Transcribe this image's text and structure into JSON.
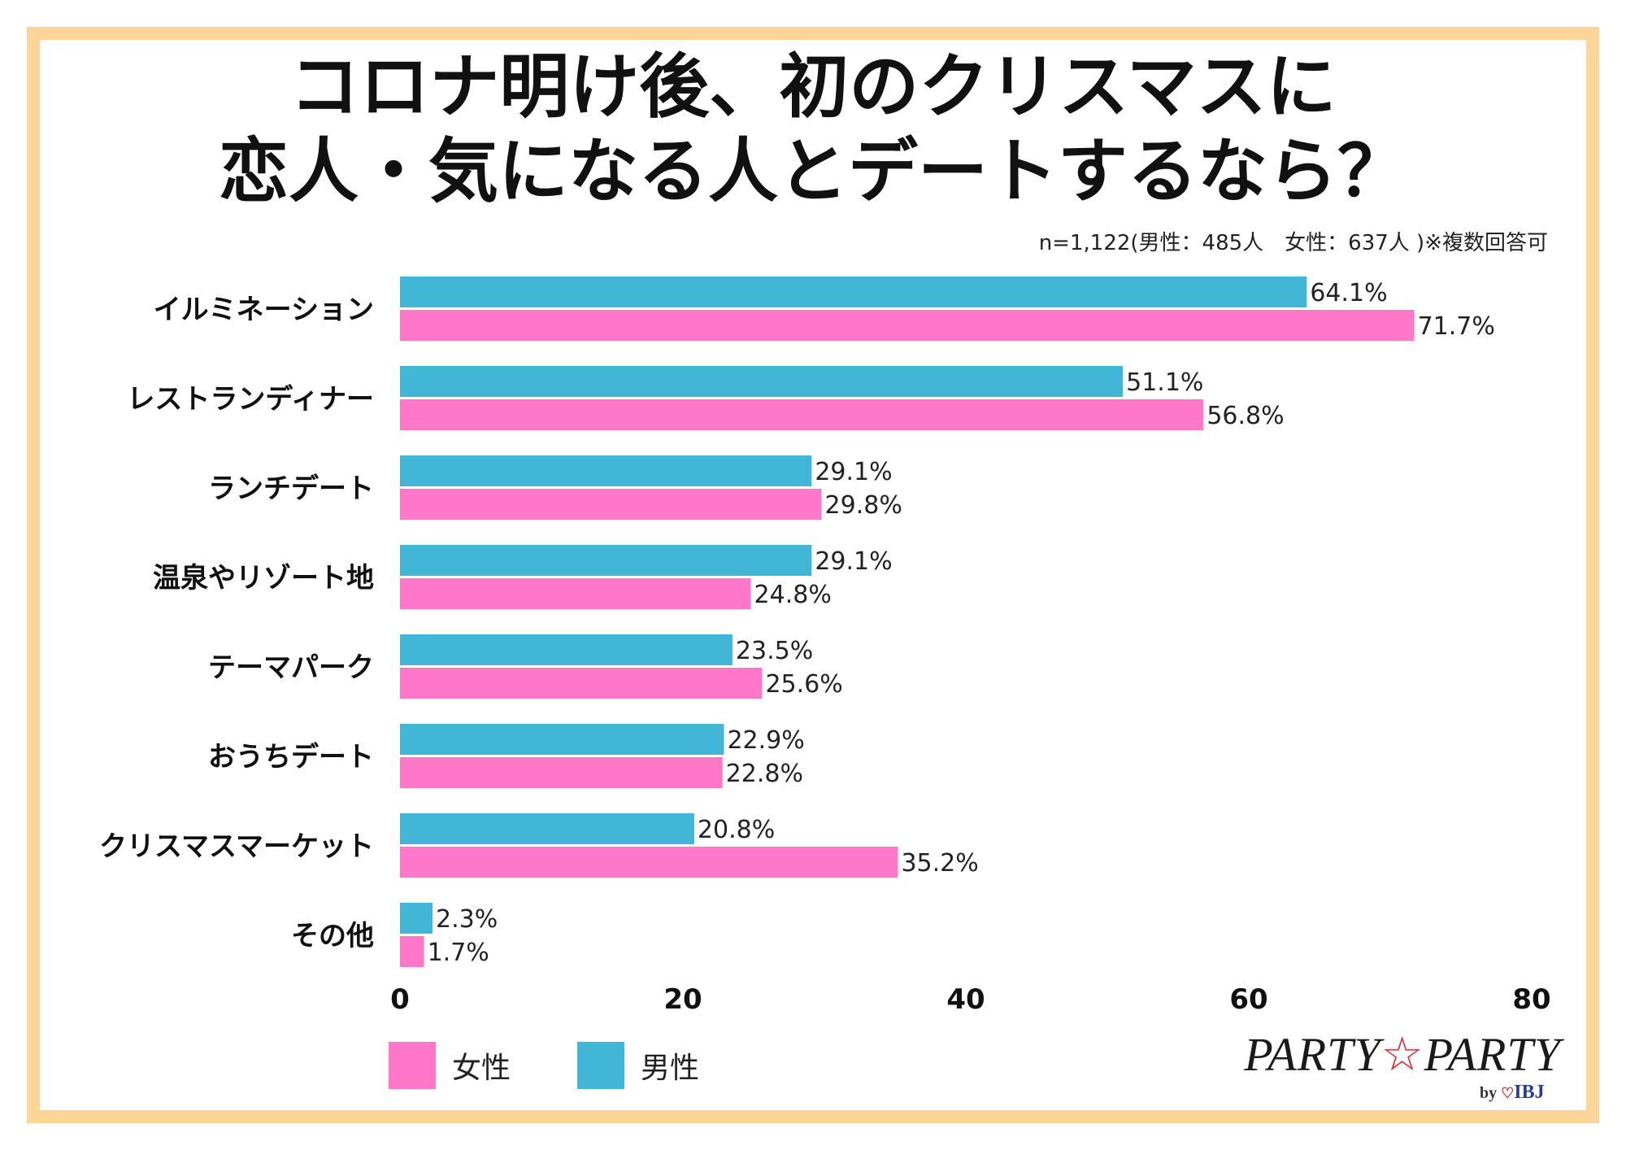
{
  "title": {
    "line1": "コロナ明け後、初のクリスマスに",
    "line2": "恋人・気になる人とデートするなら？"
  },
  "note": "n=1,122(男性：485人　女性：637人 )※複数回答可",
  "legend": {
    "female_label": "女性",
    "male_label": "男性",
    "female_color": "#ff77c8",
    "male_color": "#41b6d6"
  },
  "brand": {
    "name_a": "PARTY",
    "star": "☆",
    "name_b": "PARTY",
    "by": "by",
    "heart": "♡",
    "ibj": "IBJ"
  },
  "chart_data": {
    "type": "bar",
    "orientation": "horizontal",
    "title": "コロナ明け後、初のクリスマスに恋人・気になる人とデートするなら？",
    "categories": [
      "イルミネーション",
      "レストランディナー",
      "ランチデート",
      "温泉やリゾート地",
      "テーマパーク",
      "おうちデート",
      "クリスマスマーケット",
      "その他"
    ],
    "series": [
      {
        "name": "男性",
        "color": "#41b6d6",
        "values": [
          64.1,
          51.1,
          29.1,
          29.1,
          23.5,
          22.9,
          20.8,
          2.3
        ],
        "labels": [
          "64.1%",
          "51.1%",
          "29.1%",
          "29.1%",
          "23.5%",
          "22.9%",
          "20.8%",
          "2.3%"
        ]
      },
      {
        "name": "女性",
        "color": "#ff77c8",
        "values": [
          71.7,
          56.8,
          29.8,
          24.8,
          25.6,
          22.8,
          35.2,
          1.7
        ],
        "labels": [
          "71.7%",
          "56.8%",
          "29.8%",
          "24.8%",
          "25.6%",
          "22.8%",
          "35.2%",
          "1.7%"
        ]
      }
    ],
    "xlim": [
      0,
      80
    ],
    "xticks": [
      "0",
      "20",
      "40",
      "60",
      "80"
    ],
    "xlabel": "",
    "ylabel": "",
    "grid": false,
    "legend_position": "bottom-left"
  }
}
